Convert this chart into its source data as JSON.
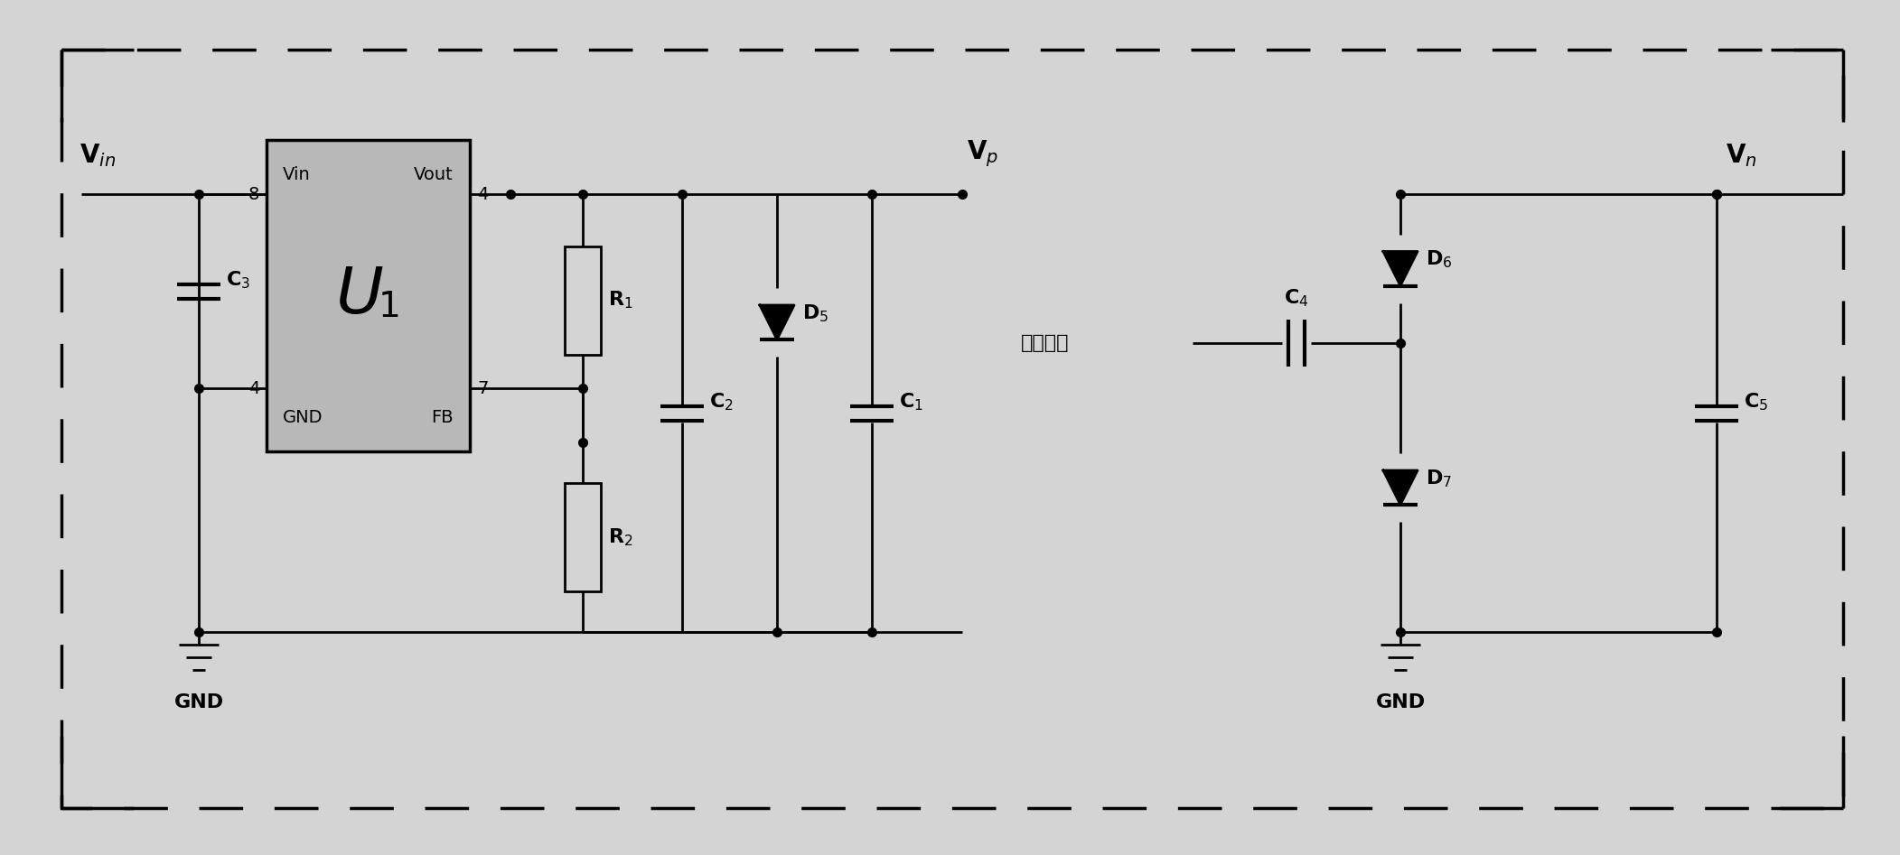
{
  "bg_color": "#d4d4d4",
  "line_color": "#000000",
  "line_width": 2.0,
  "fig_width": 21.03,
  "fig_height": 9.47,
  "u1_fill": "#b8b8b8",
  "u1_label": "U",
  "u1_sub": "1",
  "pin_labels": [
    "Vin",
    "Vout",
    "GND",
    "FB"
  ],
  "pin_numbers": [
    "8",
    "4",
    "4",
    "7"
  ],
  "component_labels": {
    "Vin": "V$_{in}$",
    "Vp": "V$_p$",
    "Vn": "V$_n$",
    "C1": "C$_1$",
    "C2": "C$_2$",
    "C3": "C$_3$",
    "C4": "C$_4$",
    "C5": "C$_5$",
    "R1": "R$_1$",
    "R2": "R$_2$",
    "D5": "D$_5$",
    "D6": "D$_6$",
    "D7": "D$_7$",
    "GND": "GND",
    "sq_wave": "方波激励"
  }
}
